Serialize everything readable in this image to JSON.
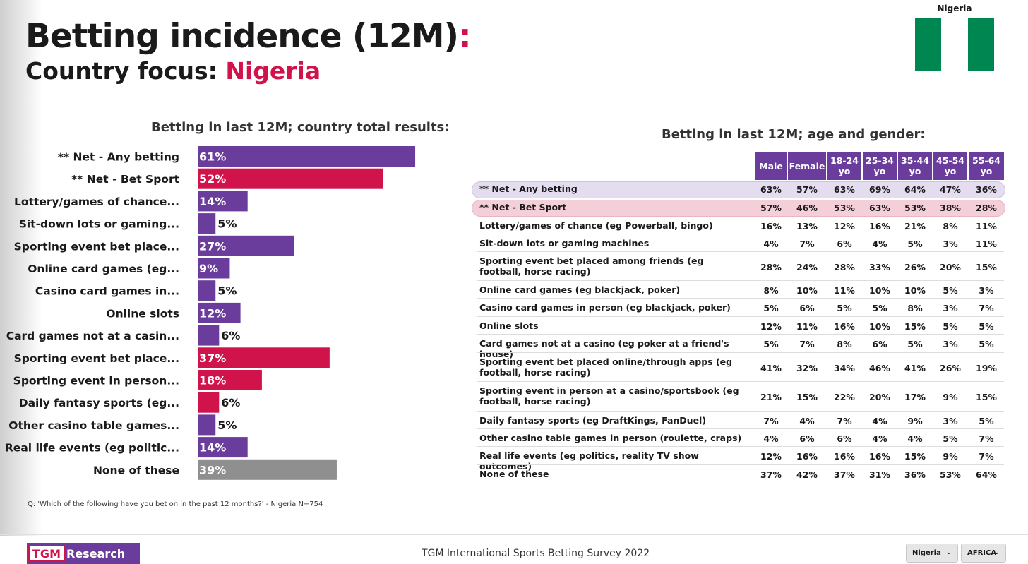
{
  "header": {
    "title_main": "Betting incidence (12M)",
    "title_colon": ":",
    "subtitle_prefix": "Country focus: ",
    "subtitle_country": "Nigeria"
  },
  "flag": {
    "label": "Nigeria",
    "colors": [
      "#008751",
      "#ffffff",
      "#008751"
    ]
  },
  "colors": {
    "purple": "#6a3d9c",
    "pink": "#d0134a",
    "grey": "#8f8f8f"
  },
  "chart_data": [
    {
      "type": "bar",
      "orientation": "horizontal",
      "title": "Betting in last 12M; country total results:",
      "categories": [
        "** Net - Any betting",
        "** Net - Bet Sport",
        "Lottery/games of chance...",
        "Sit-down lots or gaming...",
        "Sporting event bet place...",
        "Online card games (eg...",
        "Casino card games in...",
        "Online slots",
        "Card games not at a casin...",
        "Sporting event bet place...",
        "Sporting event in person...",
        "Daily fantasy sports (eg...",
        "Other casino table games...",
        "Real life events (eg politic...",
        "None of these"
      ],
      "values": [
        61,
        52,
        14,
        5,
        27,
        9,
        5,
        12,
        6,
        37,
        18,
        6,
        5,
        14,
        39
      ],
      "value_labels": [
        "61%",
        "52%",
        "14%",
        "5%",
        "27%",
        "9%",
        "5%",
        "12%",
        "6%",
        "37%",
        "18%",
        "6%",
        "5%",
        "14%",
        "39%"
      ],
      "bar_colors": [
        "purple",
        "pink",
        "purple",
        "purple",
        "purple",
        "purple",
        "purple",
        "purple",
        "purple",
        "pink",
        "pink",
        "pink",
        "purple",
        "purple",
        "grey"
      ]
    },
    {
      "type": "table",
      "title": "Betting in last 12M; age and gender:",
      "columns": [
        "Male",
        "Female",
        "18-24 yo",
        "25-34 yo",
        "35-44 yo",
        "45-54 yo",
        "55-64 yo"
      ],
      "rows": [
        {
          "label": "** Net - Any betting",
          "highlight": "purple",
          "values": [
            "63%",
            "57%",
            "63%",
            "69%",
            "64%",
            "47%",
            "36%"
          ]
        },
        {
          "label": "** Net - Bet Sport",
          "highlight": "pink",
          "values": [
            "57%",
            "46%",
            "53%",
            "63%",
            "53%",
            "38%",
            "28%"
          ]
        },
        {
          "label": "Lottery/games of chance (eg Powerball, bingo)",
          "values": [
            "16%",
            "13%",
            "12%",
            "16%",
            "21%",
            "8%",
            "11%"
          ]
        },
        {
          "label": "Sit-down lots or gaming machines",
          "values": [
            "4%",
            "7%",
            "6%",
            "4%",
            "5%",
            "3%",
            "11%"
          ]
        },
        {
          "label": "Sporting event bet placed among friends (eg football, horse racing)",
          "values": [
            "28%",
            "24%",
            "28%",
            "33%",
            "26%",
            "20%",
            "15%"
          ]
        },
        {
          "label": "Online card games (eg blackjack, poker)",
          "values": [
            "8%",
            "10%",
            "11%",
            "10%",
            "10%",
            "5%",
            "3%"
          ]
        },
        {
          "label": "Casino card games in person (eg blackjack, poker)",
          "values": [
            "5%",
            "6%",
            "5%",
            "5%",
            "8%",
            "3%",
            "7%"
          ]
        },
        {
          "label": "Online slots",
          "values": [
            "12%",
            "11%",
            "16%",
            "10%",
            "15%",
            "5%",
            "5%"
          ]
        },
        {
          "label": "Card games not at a casino (eg poker at a friend's house)",
          "values": [
            "5%",
            "7%",
            "8%",
            "6%",
            "5%",
            "3%",
            "5%"
          ]
        },
        {
          "label": "Sporting event bet placed online/through apps (eg football, horse racing)",
          "values": [
            "41%",
            "32%",
            "34%",
            "46%",
            "41%",
            "26%",
            "19%"
          ]
        },
        {
          "label": "Sporting event in person at a casino/sportsbook (eg football, horse racing)",
          "values": [
            "21%",
            "15%",
            "22%",
            "20%",
            "17%",
            "9%",
            "15%"
          ]
        },
        {
          "label": "Daily fantasy sports (eg DraftKings, FanDuel)",
          "values": [
            "7%",
            "4%",
            "7%",
            "4%",
            "9%",
            "3%",
            "5%"
          ]
        },
        {
          "label": "Other casino table games in person (roulette, craps)",
          "values": [
            "4%",
            "6%",
            "6%",
            "4%",
            "4%",
            "5%",
            "7%"
          ]
        },
        {
          "label": "Real life events (eg politics, reality TV show outcomes)",
          "values": [
            "12%",
            "16%",
            "16%",
            "16%",
            "15%",
            "9%",
            "7%"
          ]
        },
        {
          "label": "None of these",
          "values": [
            "37%",
            "42%",
            "37%",
            "31%",
            "36%",
            "53%",
            "64%"
          ]
        }
      ]
    }
  ],
  "footnote": "Q: 'Which of the following have you bet on in the past 12 months?' - Nigeria N=754",
  "footer": {
    "logo_mark": "TGM",
    "logo_text": "Research",
    "title": "TGM International Sports Betting Survey 2022",
    "dropdown_country": "Nigeria",
    "dropdown_region": "AFRICA"
  }
}
